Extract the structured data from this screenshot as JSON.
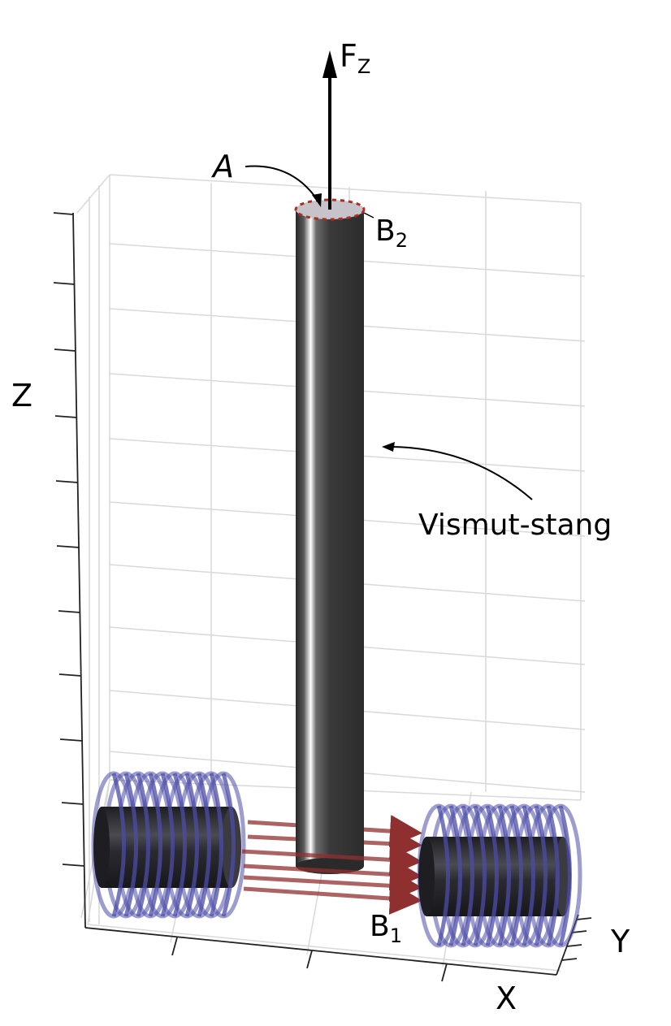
{
  "labels": {
    "force": "F",
    "force_sub": "Z",
    "area": "A",
    "field_top": "B",
    "field_top_sub": "2",
    "field_bottom": "B",
    "field_bottom_sub": "1",
    "rod": "Vismut-stang",
    "axis_x": "X",
    "axis_y": "Y",
    "axis_z": "Z"
  },
  "colors": {
    "grid": "#d9d9d9",
    "axis": "#222222",
    "rod_dark": "#2f2f2f",
    "rod_highlight": "#ffffff",
    "rod_top": "#c7c3cb",
    "rim_dashed": "#b52a1f",
    "coil": "#4c4ca8",
    "field_arrow": "#8f2f2f",
    "magnet_core": "#2a2a2e"
  },
  "icons": {
    "force_arrow": "arrow-up-icon",
    "pointer_arrow": "curved-arrow-icon"
  }
}
